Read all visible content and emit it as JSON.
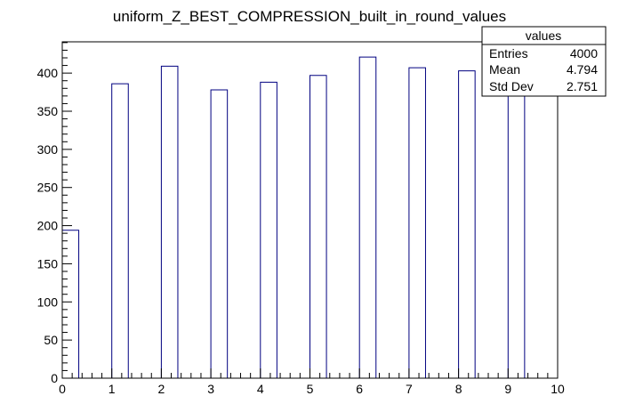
{
  "chart_data": {
    "type": "bar",
    "title": "uniform_Z_BEST_COMPRESSION_built_in_round_values",
    "xlabel": "",
    "ylabel": "",
    "xlim": [
      0,
      10
    ],
    "ylim": [
      0,
      441
    ],
    "x_ticks": [
      "0",
      "1",
      "2",
      "3",
      "4",
      "5",
      "6",
      "7",
      "8",
      "9",
      "10"
    ],
    "y_ticks": [
      "0",
      "50",
      "100",
      "150",
      "200",
      "250",
      "300",
      "350",
      "400"
    ],
    "bar_color": "#000080",
    "bars": [
      {
        "x0": 0.0,
        "x1": 0.3333,
        "value": 194
      },
      {
        "x0": 1.0,
        "x1": 1.3333,
        "value": 386
      },
      {
        "x0": 2.0,
        "x1": 2.3333,
        "value": 409
      },
      {
        "x0": 3.0,
        "x1": 3.3333,
        "value": 378
      },
      {
        "x0": 4.0,
        "x1": 4.3333,
        "value": 388
      },
      {
        "x0": 5.0,
        "x1": 5.3333,
        "value": 397
      },
      {
        "x0": 6.0,
        "x1": 6.3333,
        "value": 421
      },
      {
        "x0": 7.0,
        "x1": 7.3333,
        "value": 407
      },
      {
        "x0": 8.0,
        "x1": 8.3333,
        "value": 403
      },
      {
        "x0": 9.0,
        "x1": 9.3333,
        "value": 418
      }
    ],
    "grid": false,
    "legend_placement": "top-right",
    "stats": {
      "name": "values",
      "rows": [
        {
          "label": "Entries",
          "value": "4000"
        },
        {
          "label": "Mean",
          "value": "4.794"
        },
        {
          "label": "Std Dev",
          "value": "2.751"
        }
      ]
    }
  }
}
